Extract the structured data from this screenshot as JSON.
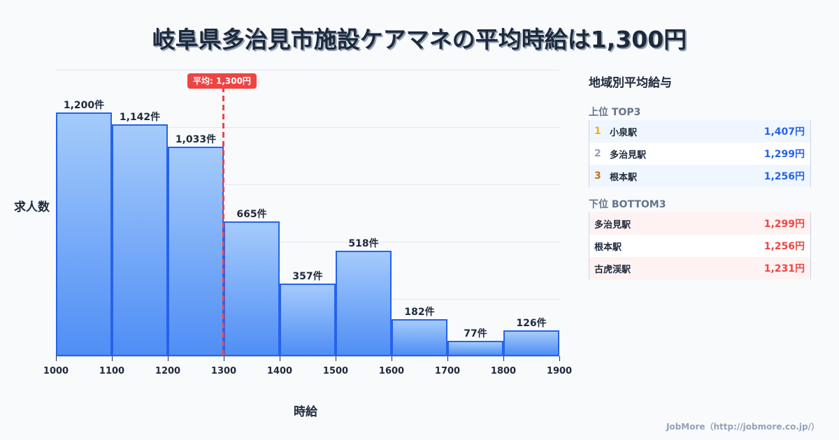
{
  "title": "岐阜県多治見市施設ケアマネの平均時給は1,300円",
  "chart_data": {
    "type": "bar",
    "title": "岐阜県多治見市施設ケアマネの平均時給は1,300円",
    "xlabel": "時給",
    "ylabel": "求人数",
    "categories": [
      "1000-1100",
      "1100-1200",
      "1200-1300",
      "1300-1400",
      "1400-1500",
      "1500-1600",
      "1600-1700",
      "1700-1800",
      "1800-1900"
    ],
    "x_ticks": [
      "1000",
      "1100",
      "1200",
      "1300",
      "1400",
      "1500",
      "1600",
      "1700",
      "1800",
      "1900"
    ],
    "values": [
      1200,
      1142,
      1033,
      665,
      357,
      518,
      182,
      77,
      126
    ],
    "value_labels": [
      "1,200件",
      "1,142件",
      "1,033件",
      "665件",
      "357件",
      "518件",
      "182件",
      "77件",
      "126件"
    ],
    "ylim": [
      0,
      1410
    ],
    "grid": true,
    "annotations": [
      {
        "type": "vline",
        "x": 1300,
        "label": "平均: 1,300円",
        "color": "#ef4444"
      }
    ],
    "bar_color": "#4f8ef5",
    "bar_border_color": "#2563eb"
  },
  "average_badge": "平均: 1,300円",
  "panel": {
    "title": "地域別平均給与",
    "top_title": "上位 TOP3",
    "top": [
      {
        "rank": "1",
        "name": "小泉駅",
        "value": "1,407円",
        "rank_color": "#eab308"
      },
      {
        "rank": "2",
        "name": "多治見駅",
        "value": "1,299円",
        "rank_color": "#94a3b8"
      },
      {
        "rank": "3",
        "name": "根本駅",
        "value": "1,256円",
        "rank_color": "#c2701f"
      }
    ],
    "bottom_title": "下位 BOTTOM3",
    "bottom": [
      {
        "name": "多治見駅",
        "value": "1,299円"
      },
      {
        "name": "根本駅",
        "value": "1,256円"
      },
      {
        "name": "古虎渓駅",
        "value": "1,231円"
      }
    ]
  },
  "footer": "JobMore（http://jobmore.co.jp/）"
}
